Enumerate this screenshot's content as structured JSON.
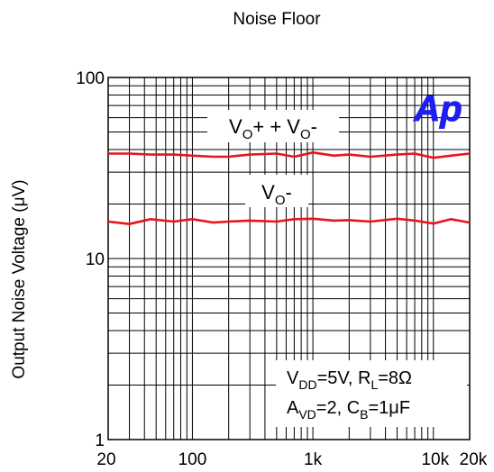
{
  "chart_data": {
    "type": "line",
    "title": "Noise Floor",
    "ylabel": "Output Noise Voltage (μV)",
    "xlabel": "",
    "x_scale": "log",
    "y_scale": "log",
    "xlim": [
      20,
      20000
    ],
    "ylim": [
      1,
      100
    ],
    "grid": true,
    "x_ticks": [
      {
        "value": 20,
        "label": "20"
      },
      {
        "value": 100,
        "label": "100"
      },
      {
        "value": 1000,
        "label": "1k"
      },
      {
        "value": 10000,
        "label": "10k"
      },
      {
        "value": 20000,
        "label": "20k"
      }
    ],
    "y_ticks": [
      {
        "value": 1,
        "label": "1"
      },
      {
        "value": 10,
        "label": "10"
      },
      {
        "value": 100,
        "label": "100"
      }
    ],
    "logo_text": "Ap",
    "series": [
      {
        "label_parts": [
          "V",
          "O",
          "+  + V",
          "O",
          "-"
        ],
        "color": "#e8141b",
        "x": [
          20,
          30,
          45,
          70,
          100,
          150,
          200,
          300,
          500,
          700,
          1000,
          1500,
          2000,
          3000,
          5000,
          7000,
          10000,
          14000,
          20000
        ],
        "y": [
          38,
          38,
          37.5,
          37.5,
          37,
          36.5,
          36.5,
          37.5,
          38,
          36.5,
          38.5,
          37,
          37.5,
          36.5,
          37.5,
          38,
          36,
          37,
          38
        ]
      },
      {
        "label_parts": [
          "V",
          "O",
          "-"
        ],
        "color": "#e8141b",
        "x": [
          20,
          30,
          45,
          70,
          100,
          150,
          200,
          300,
          500,
          700,
          1000,
          1500,
          2000,
          3000,
          5000,
          7000,
          10000,
          14000,
          20000
        ],
        "y": [
          16,
          15.5,
          16.5,
          16,
          16.5,
          15.8,
          16,
          16.2,
          16,
          16.5,
          16.6,
          16.2,
          16.3,
          16,
          16.6,
          16.2,
          15.6,
          16.5,
          15.8
        ]
      }
    ],
    "annotation": {
      "line1_parts": [
        "V",
        "DD",
        "=5V, R",
        "L",
        "=8Ω"
      ],
      "line2_parts": [
        "A",
        "VD",
        "=2, C",
        "B",
        "=1μF"
      ]
    }
  }
}
